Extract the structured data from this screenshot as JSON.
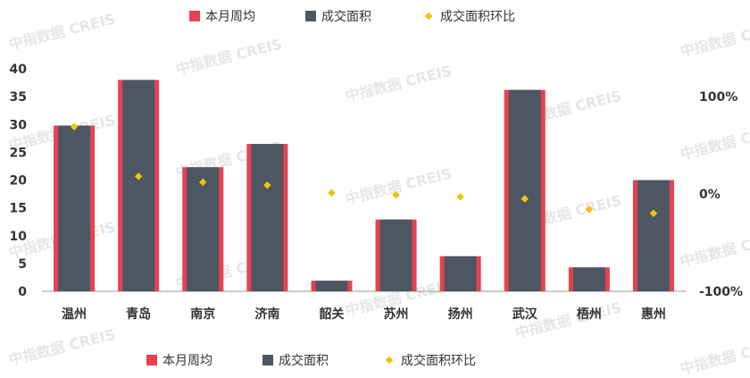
{
  "watermark": "中指数据 CREIS",
  "colors": {
    "avg": "#e8414f",
    "deal": "#4d5663",
    "ratio": "#f2c20a",
    "axis": "#333333"
  },
  "chart_data": {
    "type": "bar",
    "categories": [
      "温州",
      "青岛",
      "南京",
      "济南",
      "韶关",
      "苏州",
      "扬州",
      "武汉",
      "梧州",
      "惠州"
    ],
    "series": [
      {
        "name": "本月周均",
        "axis": "left",
        "type": "bar",
        "values": [
          29.8,
          38.0,
          22.3,
          26.5,
          1.9,
          12.9,
          6.3,
          36.2,
          4.3,
          20.0
        ]
      },
      {
        "name": "成交面积",
        "axis": "left",
        "type": "bar",
        "values": [
          29.8,
          38.0,
          22.3,
          26.5,
          1.9,
          12.9,
          6.3,
          36.2,
          4.3,
          20.0
        ]
      },
      {
        "name": "成交面积环比",
        "axis": "right",
        "type": "scatter",
        "values": [
          0.69,
          0.18,
          0.12,
          0.09,
          0.01,
          -0.01,
          -0.03,
          -0.05,
          -0.16,
          -0.2
        ]
      }
    ],
    "yleft": {
      "min": 0,
      "max": 40,
      "ticks": [
        "0",
        "5",
        "10",
        "15",
        "20",
        "25",
        "30",
        "35",
        "40"
      ]
    },
    "yright": {
      "min": -1,
      "max": 1.5,
      "ticks": [
        {
          "v": 1,
          "label": "100%"
        },
        {
          "v": 0,
          "label": "0%"
        },
        {
          "v": -1,
          "label": "-100%"
        }
      ]
    },
    "legend_top": [
      "本月周均",
      "成交面积",
      "成交面积环比"
    ],
    "legend_bottom": [
      "本月周均",
      "成交面积",
      "成交面积环比"
    ]
  }
}
